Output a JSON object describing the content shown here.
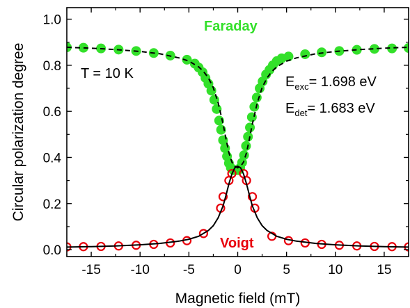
{
  "chart_data": {
    "type": "scatter",
    "xlabel": "Magnetic field (mT)",
    "ylabel": "Circular polarization degree",
    "xlim": [
      -17.5,
      17.5
    ],
    "ylim": [
      -0.03,
      1.05
    ],
    "xticks": [
      -15,
      -10,
      -5,
      0,
      5,
      10,
      15
    ],
    "xtick_labels": [
      "-15",
      "-10",
      "-5",
      "0",
      "5",
      "10",
      "15"
    ],
    "yticks": [
      0.0,
      0.2,
      0.4,
      0.6,
      0.8,
      1.0
    ],
    "ytick_labels": [
      "0.0",
      "0.2",
      "0.4",
      "0.6",
      "0.8",
      "1.0"
    ],
    "grid": false,
    "annotations": {
      "temperature": "T = 10 K",
      "e_exc": {
        "main": "E",
        "sub": "exc",
        "value": "= 1.698 eV"
      },
      "e_det": {
        "main": "E",
        "sub": "det",
        "value": "= 1.683 eV"
      }
    },
    "series": [
      {
        "name": "Faraday",
        "marker": "filled-circle",
        "color": "#33e02a",
        "points": [
          [
            -17.5,
            0.878
          ],
          [
            -15.8,
            0.876
          ],
          [
            -14.0,
            0.873
          ],
          [
            -12.2,
            0.868
          ],
          [
            -10.4,
            0.862
          ],
          [
            -8.6,
            0.853
          ],
          [
            -6.9,
            0.842
          ],
          [
            -5.2,
            0.824
          ],
          [
            -4.4,
            0.807
          ],
          [
            -4.0,
            0.79
          ],
          [
            -3.6,
            0.77
          ],
          [
            -3.3,
            0.745
          ],
          [
            -3.0,
            0.72
          ],
          [
            -2.7,
            0.69
          ],
          [
            -2.4,
            0.65
          ],
          [
            -2.15,
            0.61
          ],
          [
            -1.9,
            0.56
          ],
          [
            -1.7,
            0.52
          ],
          [
            -1.5,
            0.475
          ],
          [
            -1.3,
            0.44
          ],
          [
            -1.1,
            0.405
          ],
          [
            -0.9,
            0.375
          ],
          [
            -0.7,
            0.355
          ],
          [
            -0.45,
            0.345
          ],
          [
            -0.2,
            0.345
          ],
          [
            0.05,
            0.345
          ],
          [
            0.25,
            0.355
          ],
          [
            0.45,
            0.378
          ],
          [
            0.65,
            0.41
          ],
          [
            0.85,
            0.45
          ],
          [
            1.05,
            0.49
          ],
          [
            1.25,
            0.53
          ],
          [
            1.45,
            0.575
          ],
          [
            1.7,
            0.62
          ],
          [
            1.95,
            0.66
          ],
          [
            2.25,
            0.7
          ],
          [
            2.55,
            0.73
          ],
          [
            2.9,
            0.76
          ],
          [
            3.25,
            0.78
          ],
          [
            3.6,
            0.8
          ],
          [
            4.0,
            0.818
          ],
          [
            4.5,
            0.83
          ],
          [
            5.2,
            0.838
          ],
          [
            6.9,
            0.848
          ],
          [
            8.6,
            0.856
          ],
          [
            10.4,
            0.862
          ],
          [
            12.2,
            0.867
          ],
          [
            14.0,
            0.871
          ],
          [
            15.8,
            0.873
          ],
          [
            17.5,
            0.875
          ]
        ]
      },
      {
        "name": "Voigt",
        "marker": "open-circle",
        "color": "#e8000b",
        "points": [
          [
            -17.5,
            0.012
          ],
          [
            -15.8,
            0.013
          ],
          [
            -14.0,
            0.014
          ],
          [
            -12.2,
            0.016
          ],
          [
            -10.4,
            0.019
          ],
          [
            -8.6,
            0.023
          ],
          [
            -6.9,
            0.029
          ],
          [
            -5.2,
            0.039
          ],
          [
            -3.5,
            0.07
          ],
          [
            -1.75,
            0.18
          ],
          [
            -1.5,
            0.23
          ],
          [
            -0.9,
            0.3
          ],
          [
            -0.6,
            0.33
          ],
          [
            0.6,
            0.33
          ],
          [
            0.9,
            0.3
          ],
          [
            1.5,
            0.23
          ],
          [
            1.75,
            0.18
          ],
          [
            3.5,
            0.058
          ],
          [
            5.2,
            0.039
          ],
          [
            6.9,
            0.029
          ],
          [
            8.6,
            0.023
          ],
          [
            10.4,
            0.019
          ],
          [
            12.2,
            0.016
          ],
          [
            14.0,
            0.014
          ],
          [
            15.8,
            0.013
          ],
          [
            17.5,
            0.012
          ]
        ]
      },
      {
        "name": "",
        "marker": "dashed-line",
        "color": "#000000",
        "points": [
          [
            -17.5,
            0.878
          ],
          [
            -15,
            0.874
          ],
          [
            -12.5,
            0.868
          ],
          [
            -10,
            0.86
          ],
          [
            -8,
            0.85
          ],
          [
            -6,
            0.832
          ],
          [
            -5,
            0.818
          ],
          [
            -4,
            0.793
          ],
          [
            -3.5,
            0.773
          ],
          [
            -3,
            0.745
          ],
          [
            -2.5,
            0.703
          ],
          [
            -2,
            0.637
          ],
          [
            -1.5,
            0.545
          ],
          [
            -1.2,
            0.48
          ],
          [
            -0.9,
            0.42
          ],
          [
            -0.6,
            0.38
          ],
          [
            -0.3,
            0.362
          ],
          [
            0,
            0.355
          ],
          [
            0.3,
            0.362
          ],
          [
            0.6,
            0.38
          ],
          [
            0.9,
            0.42
          ],
          [
            1.2,
            0.48
          ],
          [
            1.5,
            0.545
          ],
          [
            2,
            0.637
          ],
          [
            2.5,
            0.703
          ],
          [
            3,
            0.745
          ],
          [
            3.5,
            0.773
          ],
          [
            4,
            0.793
          ],
          [
            5,
            0.818
          ],
          [
            6,
            0.832
          ],
          [
            8,
            0.85
          ],
          [
            10,
            0.86
          ],
          [
            12.5,
            0.868
          ],
          [
            15,
            0.874
          ],
          [
            17.5,
            0.878
          ]
        ]
      },
      {
        "name": "",
        "marker": "solid-line",
        "color": "#000000",
        "points": [
          [
            -17.5,
            0.011
          ],
          [
            -15,
            0.013
          ],
          [
            -12.5,
            0.016
          ],
          [
            -10,
            0.021
          ],
          [
            -8,
            0.027
          ],
          [
            -6,
            0.037
          ],
          [
            -5,
            0.045
          ],
          [
            -4,
            0.058
          ],
          [
            -3,
            0.083
          ],
          [
            -2.5,
            0.104
          ],
          [
            -2,
            0.138
          ],
          [
            -1.5,
            0.19
          ],
          [
            -1.2,
            0.236
          ],
          [
            -0.9,
            0.286
          ],
          [
            -0.6,
            0.328
          ],
          [
            -0.3,
            0.355
          ],
          [
            0,
            0.362
          ],
          [
            0.3,
            0.355
          ],
          [
            0.6,
            0.328
          ],
          [
            0.9,
            0.286
          ],
          [
            1.2,
            0.236
          ],
          [
            1.5,
            0.19
          ],
          [
            2,
            0.138
          ],
          [
            2.5,
            0.104
          ],
          [
            3,
            0.083
          ],
          [
            4,
            0.058
          ],
          [
            5,
            0.045
          ],
          [
            6,
            0.037
          ],
          [
            8,
            0.027
          ],
          [
            10,
            0.021
          ],
          [
            12.5,
            0.016
          ],
          [
            15,
            0.013
          ],
          [
            17.5,
            0.011
          ]
        ]
      }
    ]
  }
}
